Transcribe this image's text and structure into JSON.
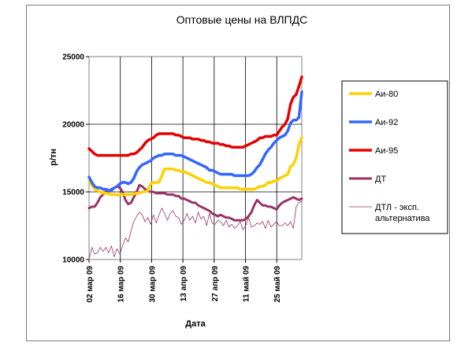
{
  "chart_data": {
    "type": "line",
    "title": "Оптовые цены на ВЛПДС",
    "xlabel": "Дата",
    "ylabel": "р/тн",
    "ylim": [
      10000,
      25000
    ],
    "yticks": [
      "10000",
      "15000",
      "20000",
      "25000"
    ],
    "xticks": [
      "02 мар 09",
      "16 мар 09",
      "30 мар 09",
      "13 апр 09",
      "27 апр 09",
      "11 май 09",
      "25 май 09"
    ],
    "grid": "major",
    "legend": "right",
    "series": [
      {
        "name": "Аи-80",
        "color": "#FFD000",
        "width": 3.5,
        "values": [
          15800,
          15500,
          15200,
          15100,
          15000,
          14900,
          14900,
          14850,
          14800,
          14800,
          14750,
          14800,
          14800,
          14800,
          14800,
          14800,
          14850,
          14900,
          14900,
          15000,
          15000,
          15100,
          15600,
          15700,
          15700,
          15700,
          16200,
          16700,
          16700,
          16700,
          16700,
          16600,
          16600,
          16500,
          16500,
          16400,
          16300,
          16200,
          16100,
          16000,
          15900,
          15800,
          15700,
          15700,
          15600,
          15500,
          15400,
          15300,
          15300,
          15300,
          15300,
          15300,
          15300,
          15300,
          15200,
          15200,
          15200,
          15200,
          15200,
          15200,
          15300,
          15400,
          15400,
          15500,
          15700,
          15700,
          15800,
          15800,
          16000,
          16100,
          16200,
          16300,
          16900,
          17000,
          17500,
          18500,
          19000
        ]
      },
      {
        "name": "Аи-92",
        "color": "#3366FF",
        "width": 3.5,
        "values": [
          16100,
          15700,
          15400,
          15300,
          15300,
          15200,
          15200,
          15100,
          15100,
          15300,
          15400,
          15600,
          15700,
          15700,
          15600,
          15700,
          16000,
          16500,
          16800,
          17000,
          17100,
          17200,
          17300,
          17500,
          17600,
          17700,
          17700,
          17800,
          17800,
          17800,
          17800,
          17700,
          17700,
          17700,
          17600,
          17500,
          17400,
          17300,
          17200,
          17100,
          17000,
          16900,
          16800,
          16600,
          16600,
          16500,
          16400,
          16300,
          16300,
          16300,
          16300,
          16300,
          16200,
          16200,
          16200,
          16200,
          16200,
          16200,
          16300,
          16500,
          16800,
          17000,
          17400,
          17800,
          18100,
          18300,
          18600,
          18800,
          19000,
          19100,
          19200,
          19500,
          20100,
          20300,
          20300,
          20500,
          22400
        ]
      },
      {
        "name": "Аи-95",
        "color": "#E60000",
        "width": 3.5,
        "values": [
          18200,
          18000,
          17800,
          17700,
          17700,
          17700,
          17700,
          17700,
          17700,
          17700,
          17700,
          17700,
          17700,
          17700,
          17700,
          17800,
          17800,
          17900,
          18100,
          18300,
          18600,
          18800,
          18900,
          19000,
          19200,
          19300,
          19300,
          19300,
          19300,
          19300,
          19300,
          19200,
          19200,
          19100,
          19000,
          19000,
          19000,
          18900,
          18900,
          18900,
          18800,
          18800,
          18700,
          18700,
          18600,
          18600,
          18600,
          18500,
          18500,
          18400,
          18400,
          18300,
          18300,
          18300,
          18300,
          18300,
          18400,
          18500,
          18600,
          18700,
          18800,
          19000,
          19000,
          19100,
          19100,
          19100,
          19200,
          19200,
          19500,
          19800,
          20000,
          20400,
          21500,
          22000,
          22200,
          22800,
          23500
        ]
      },
      {
        "name": "ДТ",
        "color": "#993366",
        "width": 3,
        "values": [
          13800,
          13900,
          13900,
          14200,
          14600,
          14800,
          15000,
          15100,
          15200,
          15300,
          15400,
          15300,
          15000,
          14400,
          14100,
          14200,
          14600,
          15000,
          15500,
          15400,
          15200,
          15100,
          15000,
          15000,
          14900,
          14900,
          14900,
          14900,
          14800,
          14800,
          14800,
          14700,
          14700,
          14500,
          14500,
          14400,
          14300,
          14200,
          14200,
          14000,
          13900,
          13800,
          13700,
          13600,
          13400,
          13300,
          13200,
          13300,
          13200,
          13100,
          13100,
          13000,
          12900,
          12900,
          12900,
          12900,
          13000,
          13200,
          13500,
          14000,
          14400,
          14200,
          14000,
          14000,
          13900,
          13900,
          13800,
          13700,
          14000,
          14200,
          14300,
          14400,
          14500,
          14600,
          14500,
          14400,
          14500
        ]
      },
      {
        "name": "ДТЛ - эксп. альтернатива",
        "color": "#993366",
        "width": 0.8,
        "values": [
          10000,
          10900,
          10400,
          10500,
          10900,
          10600,
          10900,
          10500,
          11000,
          10200,
          10800,
          10400,
          11000,
          11600,
          11300,
          12100,
          12800,
          13200,
          13500,
          13300,
          12800,
          13100,
          12600,
          13300,
          12700,
          13300,
          13800,
          13400,
          12900,
          13400,
          13600,
          13200,
          13100,
          12600,
          12900,
          13400,
          12900,
          13200,
          12700,
          13500,
          13000,
          13200,
          12500,
          13400,
          12700,
          12600,
          12900,
          12800,
          12500,
          12900,
          12400,
          12600,
          12300,
          12500,
          12800,
          12200,
          12500,
          13100,
          12400,
          12500,
          12700,
          12600,
          12800,
          12300,
          12900,
          12400,
          12600,
          12800,
          12500,
          12500,
          12700,
          12500,
          12800,
          12300,
          13900,
          14200,
          14300
        ]
      }
    ]
  }
}
